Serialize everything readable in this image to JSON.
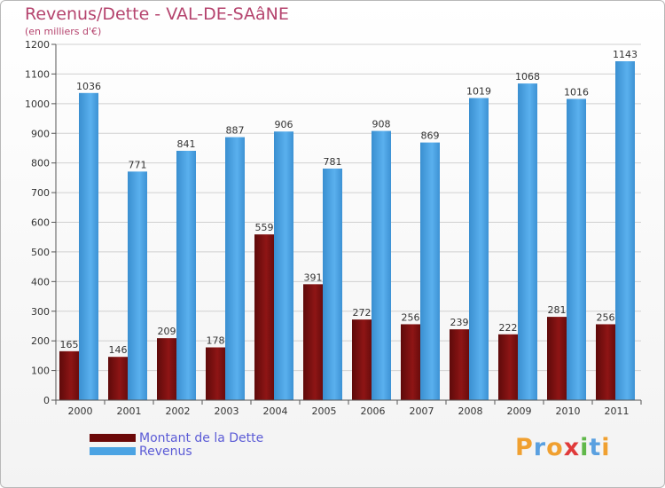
{
  "header": {
    "title": "Revenus/Dette - VAL-DE-SAâNE",
    "subtitle": "(en milliers d'€)"
  },
  "chart_data": {
    "type": "bar",
    "title": "Revenus/Dette - VAL-DE-SAâNE",
    "subtitle": "(en milliers d'€)",
    "xlabel": "",
    "ylabel": "",
    "categories": [
      "2000",
      "2001",
      "2002",
      "2003",
      "2004",
      "2005",
      "2006",
      "2007",
      "2008",
      "2009",
      "2010",
      "2011"
    ],
    "series": [
      {
        "name": "Montant de la Dette",
        "color": "#8b0f0f",
        "values": [
          165,
          146,
          209,
          178,
          559,
          391,
          272,
          256,
          239,
          222,
          281,
          256
        ]
      },
      {
        "name": "Revenus",
        "color": "#4ba3e3",
        "values": [
          1036,
          771,
          841,
          887,
          906,
          781,
          908,
          869,
          1019,
          1068,
          1016,
          1143
        ]
      }
    ],
    "ylim": [
      0,
      1200
    ],
    "yticks": [
      0,
      100,
      200,
      300,
      400,
      500,
      600,
      700,
      800,
      900,
      1000,
      1100,
      1200
    ],
    "grid": true,
    "legend": "bottom-left"
  },
  "legend": {
    "items": [
      {
        "label": "Montant de la Dette",
        "color": "#6b0808"
      },
      {
        "label": "Revenus",
        "color": "#4ba3e3"
      }
    ]
  },
  "logo": {
    "text": "Proxiti",
    "letters": [
      "P",
      "r",
      "o",
      "x",
      "i",
      "t",
      "i"
    ],
    "colors": [
      "#f0a030",
      "#5aa0e0",
      "#f0a030",
      "#e03a3a",
      "#60b84a",
      "#5aa0e0",
      "#f0a030"
    ]
  }
}
